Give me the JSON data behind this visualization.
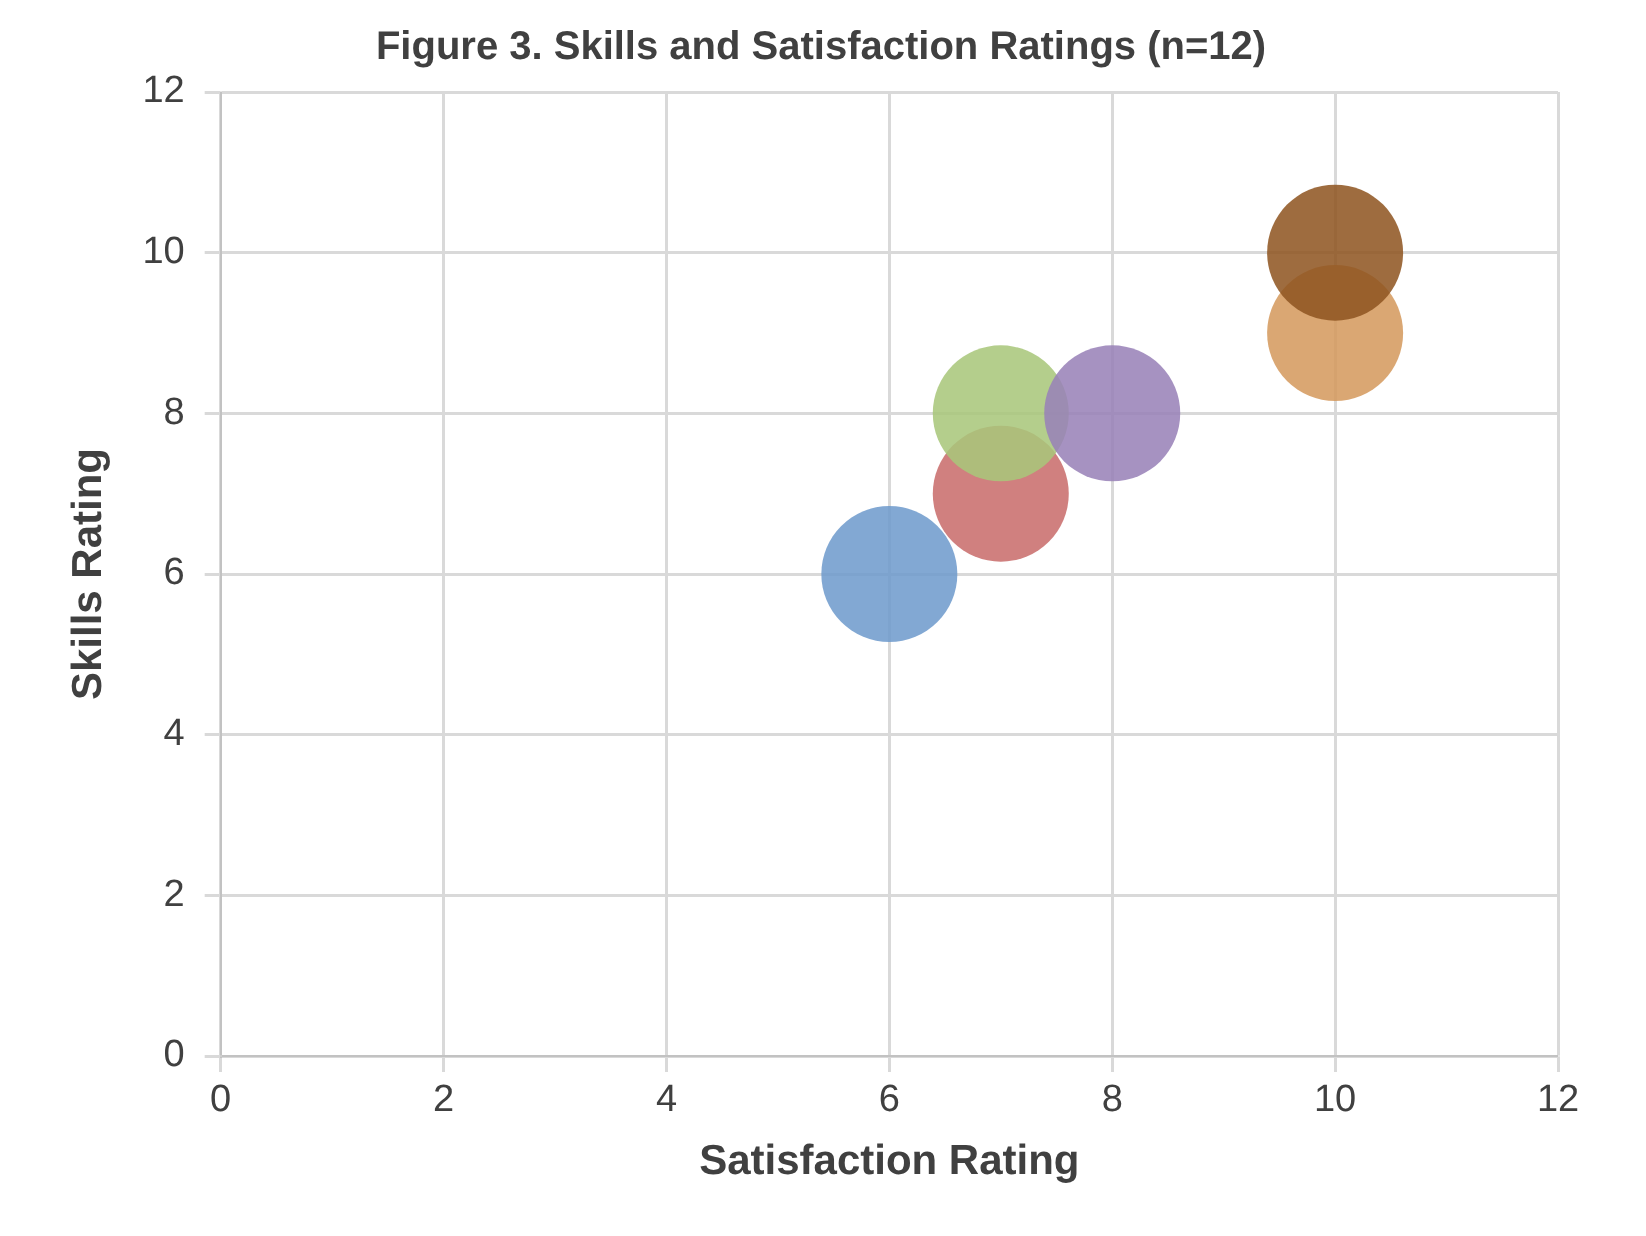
{
  "chart_data": {
    "type": "bubble",
    "title": "Figure 3. Skills and Satisfaction Ratings (n=12)",
    "xlabel": "Satisfaction Rating",
    "ylabel": "Skills Rating",
    "x": [
      6,
      7,
      7,
      8,
      10,
      10
    ],
    "values": [
      6,
      7,
      8,
      8,
      9,
      10
    ],
    "sizes": [
      1,
      1,
      1,
      1,
      1,
      1
    ],
    "colors": [
      "#6f9bcc",
      "#c96d6b",
      "#a9c77a",
      "#9881b8",
      "#d49a5e",
      "#8f5522"
    ],
    "xlim": [
      0,
      12
    ],
    "xticks": [
      0,
      2,
      4,
      6,
      8,
      10,
      12
    ],
    "ylim": [
      0,
      12
    ],
    "yticks": [
      0,
      2,
      4,
      6,
      8,
      10,
      12
    ],
    "grid": true,
    "legend": false
  }
}
